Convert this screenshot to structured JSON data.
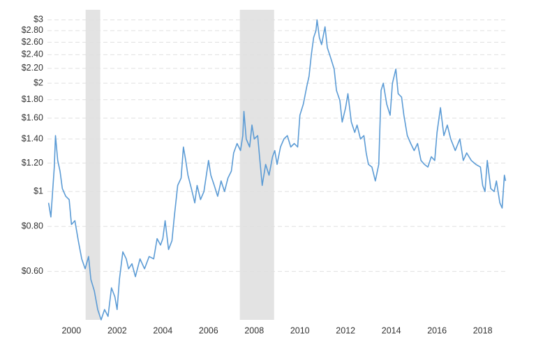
{
  "chart_data": {
    "type": "line",
    "x": [
      1999.0,
      1999.1,
      1999.25,
      1999.3,
      1999.4,
      1999.5,
      1999.6,
      1999.75,
      1999.9,
      2000.0,
      2000.15,
      2000.3,
      2000.45,
      2000.6,
      2000.75,
      2000.85,
      2001.0,
      2001.15,
      2001.3,
      2001.45,
      2001.6,
      2001.75,
      2001.9,
      2002.0,
      2002.1,
      2002.25,
      2002.4,
      2002.5,
      2002.65,
      2002.8,
      2003.0,
      2003.2,
      2003.4,
      2003.6,
      2003.75,
      2003.9,
      2004.0,
      2004.1,
      2004.25,
      2004.4,
      2004.5,
      2004.65,
      2004.8,
      2004.9,
      2005.0,
      2005.1,
      2005.25,
      2005.4,
      2005.5,
      2005.65,
      2005.8,
      2006.0,
      2006.1,
      2006.25,
      2006.4,
      2006.55,
      2006.7,
      2006.85,
      2007.0,
      2007.1,
      2007.25,
      2007.4,
      2007.5,
      2007.55,
      2007.65,
      2007.8,
      2007.9,
      2008.0,
      2008.15,
      2008.25,
      2008.35,
      2008.5,
      2008.65,
      2008.8,
      2008.9,
      2009.0,
      2009.15,
      2009.3,
      2009.45,
      2009.6,
      2009.75,
      2009.9,
      2010.0,
      2010.15,
      2010.3,
      2010.4,
      2010.5,
      2010.6,
      2010.7,
      2010.75,
      2010.85,
      2010.95,
      2011.1,
      2011.2,
      2011.35,
      2011.5,
      2011.6,
      2011.75,
      2011.85,
      2012.0,
      2012.1,
      2012.25,
      2012.4,
      2012.5,
      2012.65,
      2012.8,
      2012.9,
      2013.0,
      2013.15,
      2013.3,
      2013.45,
      2013.55,
      2013.65,
      2013.8,
      2013.95,
      2014.05,
      2014.2,
      2014.3,
      2014.45,
      2014.55,
      2014.7,
      2014.85,
      2015.0,
      2015.15,
      2015.3,
      2015.45,
      2015.6,
      2015.75,
      2015.9,
      2016.0,
      2016.15,
      2016.3,
      2016.45,
      2016.6,
      2016.8,
      2017.0,
      2017.15,
      2017.3,
      2017.5,
      2017.7,
      2017.9,
      2018.0,
      2018.1,
      2018.2,
      2018.35,
      2018.5,
      2018.6,
      2018.75,
      2018.85,
      2018.95,
      2019.0
    ],
    "values": [
      0.93,
      0.85,
      1.17,
      1.43,
      1.22,
      1.14,
      1.02,
      0.97,
      0.95,
      0.81,
      0.83,
      0.73,
      0.65,
      0.61,
      0.66,
      0.57,
      0.53,
      0.47,
      0.44,
      0.47,
      0.45,
      0.54,
      0.51,
      0.47,
      0.57,
      0.68,
      0.65,
      0.61,
      0.63,
      0.58,
      0.65,
      0.61,
      0.66,
      0.65,
      0.74,
      0.71,
      0.74,
      0.83,
      0.69,
      0.73,
      0.85,
      1.04,
      1.09,
      1.33,
      1.22,
      1.11,
      1.02,
      0.93,
      1.04,
      0.95,
      1.0,
      1.22,
      1.11,
      1.04,
      0.97,
      1.07,
      1.0,
      1.09,
      1.14,
      1.28,
      1.36,
      1.3,
      1.43,
      1.67,
      1.4,
      1.33,
      1.53,
      1.4,
      1.43,
      1.22,
      1.04,
      1.19,
      1.11,
      1.25,
      1.3,
      1.19,
      1.33,
      1.4,
      1.43,
      1.33,
      1.36,
      1.33,
      1.63,
      1.75,
      1.96,
      2.09,
      2.4,
      2.68,
      2.8,
      3.0,
      2.68,
      2.56,
      2.87,
      2.51,
      2.35,
      2.19,
      1.91,
      1.79,
      1.56,
      1.71,
      1.87,
      1.56,
      1.46,
      1.53,
      1.4,
      1.43,
      1.28,
      1.19,
      1.17,
      1.07,
      1.19,
      1.91,
      2.0,
      1.75,
      1.63,
      2.0,
      2.19,
      1.87,
      1.83,
      1.63,
      1.43,
      1.36,
      1.3,
      1.36,
      1.22,
      1.19,
      1.17,
      1.25,
      1.22,
      1.46,
      1.71,
      1.43,
      1.53,
      1.4,
      1.3,
      1.4,
      1.22,
      1.28,
      1.22,
      1.19,
      1.17,
      1.04,
      1.0,
      1.22,
      1.02,
      1.0,
      1.07,
      0.93,
      0.9,
      1.11,
      1.07
    ],
    "color": "#5b9bd5",
    "log_y": true,
    "grid": true,
    "xlim": [
      1998.95,
      2019.05
    ],
    "xticks": [
      2000,
      2002,
      2004,
      2006,
      2008,
      2010,
      2012,
      2014,
      2016,
      2018
    ],
    "ylim": [
      0.44,
      3.2
    ],
    "yticks": [
      {
        "value": 0.6,
        "label": "$0.60"
      },
      {
        "value": 0.8,
        "label": "$0.80"
      },
      {
        "value": 1,
        "label": "$1"
      },
      {
        "value": 1.2,
        "label": "$1.20"
      },
      {
        "value": 1.4,
        "label": "$1.40"
      },
      {
        "value": 1.6,
        "label": "$1.60"
      },
      {
        "value": 1.8,
        "label": "$1.80"
      },
      {
        "value": 2,
        "label": "$2"
      },
      {
        "value": 2.2,
        "label": "$2.20"
      },
      {
        "value": 2.4,
        "label": "$2.40"
      },
      {
        "value": 2.6,
        "label": "$2.60"
      },
      {
        "value": 2.8,
        "label": "$2.80"
      },
      {
        "value": 3,
        "label": "$3"
      }
    ],
    "shaded_spans": [
      {
        "start": 2000.62,
        "end": 2001.26
      },
      {
        "start": 2007.37,
        "end": 2008.87
      }
    ],
    "shade_color": "#e3e3e3"
  }
}
